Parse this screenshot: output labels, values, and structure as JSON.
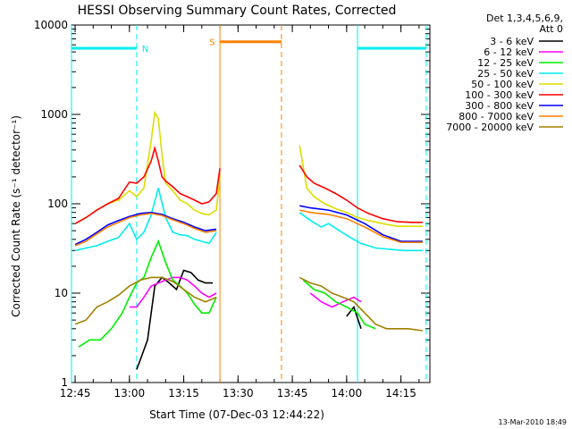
{
  "chart_data": {
    "type": "line",
    "title": "HESSI Observing Summary Count Rates, Corrected",
    "xlabel": "Start Time (07-Dec-03 12:44:22)",
    "ylabel": "Corrected Count Rate (s⁻¹ detector⁻¹)",
    "yscale": "log",
    "ylim": [
      1,
      10000
    ],
    "xlim": [
      "12:44",
      "14:23"
    ],
    "x_ticks": [
      "12:45",
      "13:00",
      "13:15",
      "13:30",
      "13:45",
      "14:00",
      "14:15"
    ],
    "y_ticks": [
      "1",
      "10",
      "100",
      "1000",
      "10000"
    ],
    "legend": {
      "header": [
        "Det 1,3,4,5,6,9,",
        "Att 0"
      ],
      "position": "top-right-outside"
    },
    "series": [
      {
        "name": "3 - 6 keV",
        "color": "#000000",
        "x": [
          "13:02",
          "13:03",
          "13:05",
          "13:07",
          "13:09",
          "13:11",
          "13:13",
          "13:15",
          "13:17",
          "13:19",
          "13:21",
          "13:23",
          "14:00",
          "14:02",
          "14:04"
        ],
        "y": [
          1.4,
          1.8,
          3,
          12,
          15,
          13,
          11,
          18,
          17,
          14,
          13,
          13,
          5.5,
          7,
          4
        ]
      },
      {
        "name": "6 - 12 keV",
        "color": "#ff00ff",
        "x": [
          "13:00",
          "13:02",
          "13:04",
          "13:06",
          "13:08",
          "13:10",
          "13:12",
          "13:14",
          "13:16",
          "13:18",
          "13:20",
          "13:22",
          "13:24",
          "13:50",
          "13:53",
          "13:56",
          "13:59",
          "14:02",
          "14:04"
        ],
        "y": [
          7,
          7,
          9,
          12,
          13,
          14,
          15,
          15,
          14,
          12,
          10,
          9,
          10,
          10,
          8,
          7,
          8,
          9,
          8
        ]
      },
      {
        "name": "12 - 25 keV",
        "color": "#00ee00",
        "x": [
          "12:46",
          "12:49",
          "12:52",
          "12:55",
          "12:58",
          "13:00",
          "13:02",
          "13:04",
          "13:06",
          "13:08",
          "13:10",
          "13:12",
          "13:14",
          "13:16",
          "13:18",
          "13:20",
          "13:22",
          "13:24",
          "13:48",
          "13:51",
          "13:54",
          "13:57",
          "14:00",
          "14:03",
          "14:05",
          "14:08"
        ],
        "y": [
          2.5,
          3,
          3,
          4,
          6,
          9,
          13,
          15,
          25,
          38,
          22,
          14,
          12,
          10,
          7.5,
          6,
          6,
          9,
          14,
          11,
          10,
          8,
          7,
          6,
          4.5,
          4
        ]
      },
      {
        "name": "25 - 50 keV",
        "color": "#00eeee",
        "x": [
          "12:45",
          "12:48",
          "12:51",
          "12:54",
          "12:57",
          "13:00",
          "13:02",
          "13:04",
          "13:06",
          "13:08",
          "13:10",
          "13:12",
          "13:14",
          "13:16",
          "13:18",
          "13:20",
          "13:22",
          "13:24",
          "13:47",
          "13:50",
          "13:53",
          "13:55",
          "13:58",
          "14:01",
          "14:04",
          "14:08",
          "14:12",
          "14:16",
          "14:21"
        ],
        "y": [
          30,
          32,
          34,
          38,
          42,
          60,
          40,
          48,
          75,
          150,
          70,
          48,
          45,
          44,
          40,
          38,
          36,
          48,
          80,
          65,
          55,
          60,
          50,
          42,
          36,
          32,
          31,
          30,
          30
        ]
      },
      {
        "name": "50 - 100 keV",
        "color": "#dddd00",
        "x": [
          "12:45",
          "12:48",
          "12:51",
          "12:54",
          "12:57",
          "13:00",
          "13:02",
          "13:04",
          "13:06",
          "13:07",
          "13:08",
          "13:09",
          "13:10",
          "13:12",
          "13:14",
          "13:16",
          "13:18",
          "13:20",
          "13:22",
          "13:24",
          "13:25",
          "13:47",
          "13:49",
          "13:51",
          "13:54",
          "13:57",
          "14:00",
          "14:03",
          "14:06",
          "14:10",
          "14:14",
          "14:18",
          "14:21"
        ],
        "y": [
          60,
          70,
          85,
          100,
          110,
          140,
          120,
          150,
          500,
          1050,
          900,
          350,
          170,
          140,
          110,
          100,
          85,
          78,
          75,
          85,
          200,
          450,
          150,
          120,
          100,
          88,
          80,
          70,
          65,
          60,
          56,
          56,
          56
        ]
      },
      {
        "name": "100 - 300 keV",
        "color": "#ff0000",
        "x": [
          "12:45",
          "12:48",
          "12:51",
          "12:54",
          "12:57",
          "13:00",
          "13:02",
          "13:04",
          "13:06",
          "13:07",
          "13:08",
          "13:09",
          "13:10",
          "13:12",
          "13:14",
          "13:16",
          "13:18",
          "13:20",
          "13:22",
          "13:24",
          "13:25",
          "13:47",
          "13:49",
          "13:51",
          "13:54",
          "13:57",
          "14:00",
          "14:03",
          "14:06",
          "14:10",
          "14:14",
          "14:18",
          "14:21"
        ],
        "y": [
          60,
          70,
          85,
          100,
          115,
          175,
          170,
          200,
          300,
          420,
          300,
          200,
          180,
          155,
          130,
          120,
          110,
          100,
          105,
          130,
          250,
          270,
          200,
          170,
          150,
          130,
          110,
          90,
          78,
          68,
          63,
          62,
          62
        ]
      },
      {
        "name": "300 - 800 keV",
        "color": "#0000ff",
        "x": [
          "12:45",
          "12:48",
          "12:51",
          "12:54",
          "12:57",
          "13:00",
          "13:03",
          "13:06",
          "13:09",
          "13:12",
          "13:15",
          "13:18",
          "13:21",
          "13:24",
          "13:47",
          "13:50",
          "13:55",
          "14:00",
          "14:05",
          "14:10",
          "14:15",
          "14:21"
        ],
        "y": [
          35,
          40,
          48,
          58,
          65,
          72,
          78,
          80,
          76,
          68,
          62,
          55,
          50,
          52,
          95,
          90,
          85,
          75,
          60,
          45,
          38,
          38
        ]
      },
      {
        "name": "800 - 7000 keV",
        "color": "#ff8000",
        "x": [
          "12:45",
          "12:48",
          "12:51",
          "12:54",
          "12:57",
          "13:00",
          "13:03",
          "13:06",
          "13:09",
          "13:12",
          "13:15",
          "13:18",
          "13:21",
          "13:24",
          "13:47",
          "13:50",
          "13:55",
          "14:00",
          "14:05",
          "14:10",
          "14:15",
          "14:21"
        ],
        "y": [
          34,
          38,
          46,
          55,
          62,
          70,
          75,
          78,
          74,
          66,
          60,
          53,
          48,
          50,
          85,
          80,
          76,
          68,
          55,
          43,
          37,
          37
        ]
      },
      {
        "name": "7000 - 20000 keV",
        "color": "#a08000",
        "x": [
          "12:45",
          "12:48",
          "12:51",
          "12:54",
          "12:57",
          "13:00",
          "13:03",
          "13:06",
          "13:09",
          "13:12",
          "13:15",
          "13:18",
          "13:21",
          "13:24",
          "13:47",
          "13:50",
          "13:53",
          "13:56",
          "13:59",
          "14:02",
          "14:05",
          "14:08",
          "14:11",
          "14:14",
          "14:17",
          "14:21"
        ],
        "y": [
          4.5,
          5,
          7,
          8,
          9.5,
          12,
          14,
          15,
          15,
          13.5,
          11,
          9,
          8,
          9,
          15,
          13,
          12,
          10,
          9,
          8,
          6,
          4.5,
          4,
          4,
          4,
          3.8
        ]
      }
    ],
    "bars": [
      {
        "label": "N",
        "color": "#00eeee",
        "segments": [
          [
            "12:44",
            "13:02"
          ],
          [
            "14:03",
            "14:22"
          ]
        ],
        "level": 5500
      },
      {
        "label": "S",
        "color": "#ff8000",
        "segments": [
          [
            "13:25",
            "13:42"
          ]
        ],
        "level": 6500
      }
    ],
    "vlines": [
      {
        "x": "12:44",
        "color": "#00eeee",
        "style": "solid"
      },
      {
        "x": "13:02",
        "color": "#00eeee",
        "style": "dashed"
      },
      {
        "x": "13:25",
        "color": "#ff8000",
        "style": "solid"
      },
      {
        "x": "13:42",
        "color": "#ff8000",
        "style": "dashed"
      },
      {
        "x": "14:03",
        "color": "#00eeee",
        "style": "solid"
      },
      {
        "x": "14:22",
        "color": "#00eeee",
        "style": "dashed"
      }
    ],
    "footer": "13-Mar-2010 18:49"
  }
}
